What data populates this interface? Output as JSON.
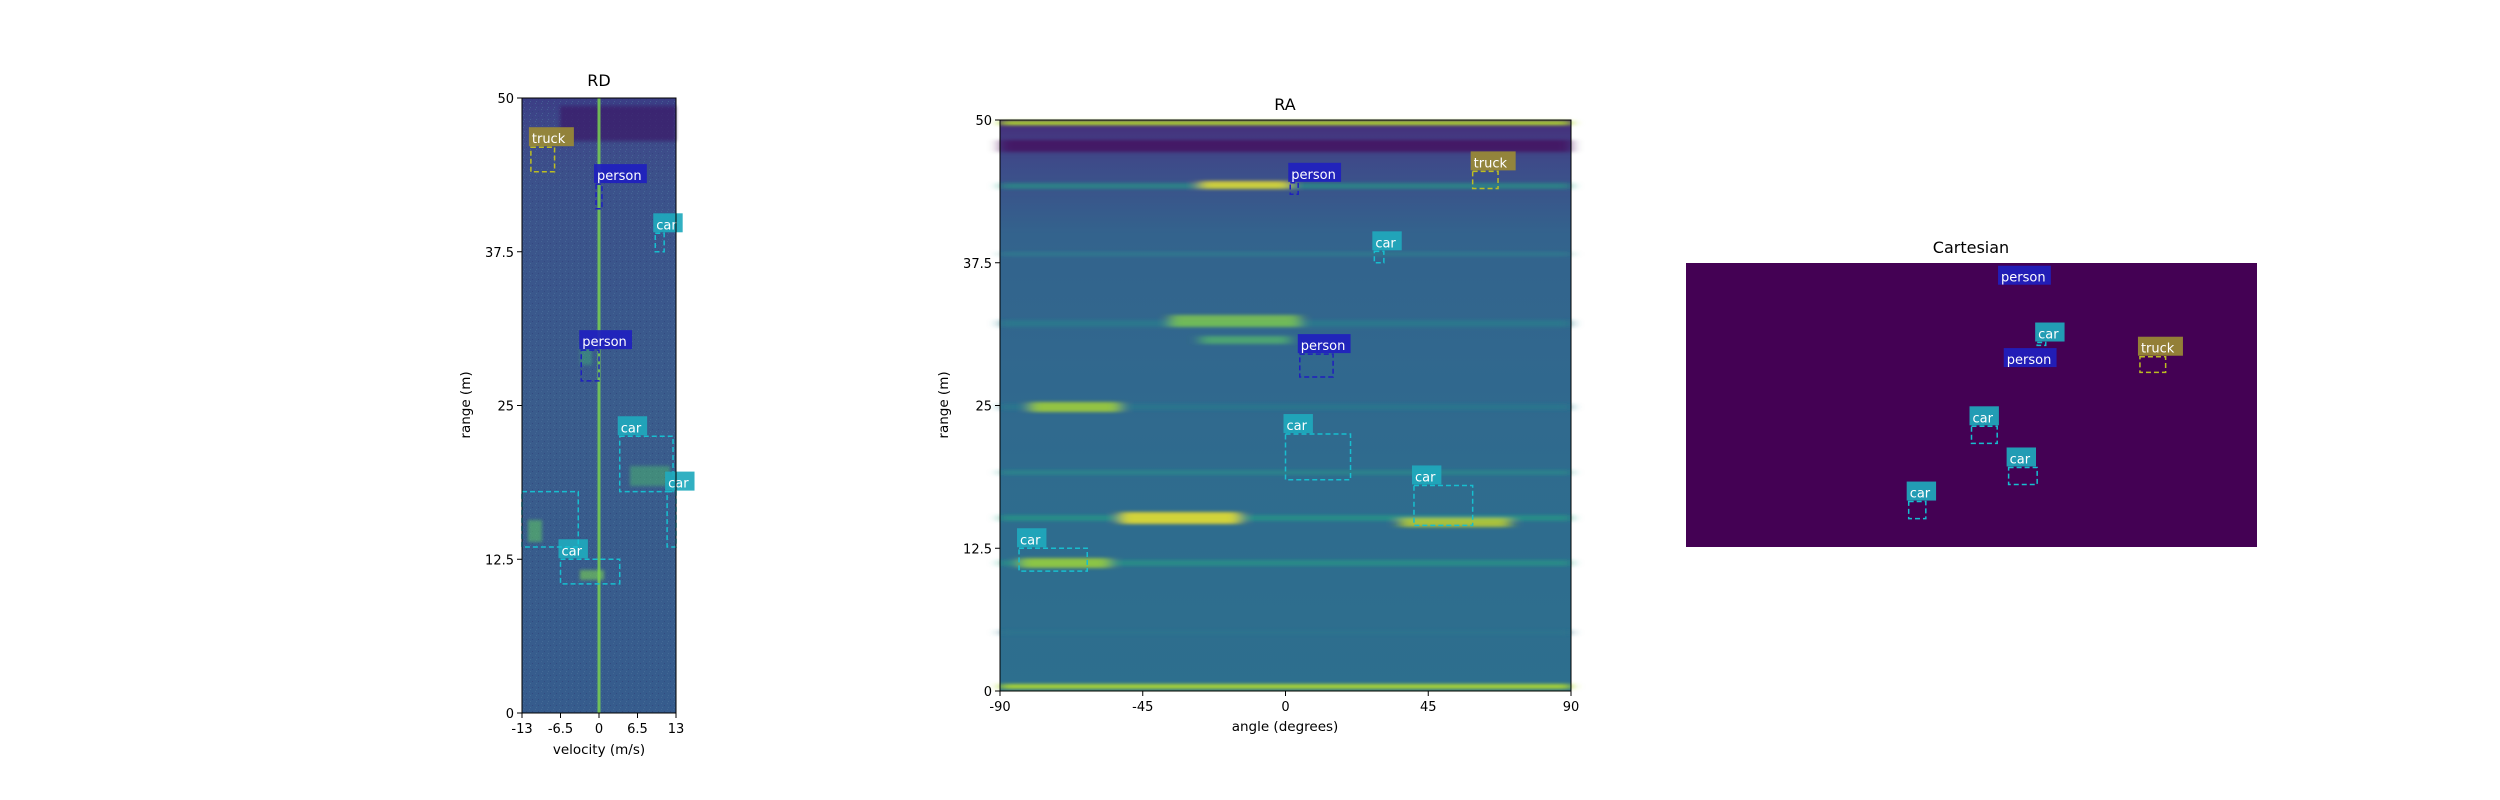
{
  "colors": {
    "car": "#17becf",
    "person": "#1f1fbf",
    "truck": "#bcbd22",
    "background_low": "#2d6e8e",
    "peak": "#a8dc3c",
    "cartesian_bg": "#440154"
  },
  "chart_data": [
    {
      "type": "heatmap",
      "title": "RD",
      "xlabel": "velocity (m/s)",
      "ylabel": "range (m)",
      "xlim": [
        -13,
        13
      ],
      "ylim": [
        0,
        50
      ],
      "xticks": [
        "-13",
        "-6.5",
        "0",
        "6.5",
        "13"
      ],
      "xtick_values": [
        -13,
        -6.5,
        0,
        6.5,
        13
      ],
      "yticks": [
        "0",
        "12.5",
        "25",
        "37.5",
        "50"
      ],
      "ytick_values": [
        0,
        12.5,
        25,
        37.5,
        50
      ],
      "detections": [
        {
          "label": "truck",
          "class": "truck",
          "x": [
            -11.5,
            -7.5
          ],
          "y": [
            44,
            46
          ]
        },
        {
          "label": "person",
          "class": "person",
          "x": [
            -0.5,
            0.5
          ],
          "y": [
            41,
            43
          ]
        },
        {
          "label": "car",
          "class": "car",
          "x": [
            9.5,
            11
          ],
          "y": [
            37.5,
            39
          ]
        },
        {
          "label": "person",
          "class": "person",
          "x": [
            -3,
            0
          ],
          "y": [
            27,
            29.5
          ]
        },
        {
          "label": "car",
          "class": "car",
          "x": [
            3.5,
            12.5
          ],
          "y": [
            18,
            22.5
          ]
        },
        {
          "label": "car",
          "class": "car",
          "x": [
            11.5,
            13
          ],
          "y": [
            13.5,
            18
          ]
        },
        {
          "label": "car",
          "class": "car",
          "x": [
            -6.5,
            3.5
          ],
          "y": [
            10.5,
            12.5
          ]
        },
        {
          "label": "",
          "class": "car",
          "x": [
            -13,
            -3.5
          ],
          "y": [
            13.5,
            18
          ]
        }
      ]
    },
    {
      "type": "heatmap",
      "title": "RA",
      "xlabel": "angle (degrees)",
      "ylabel": "range (m)",
      "xlim": [
        -90,
        90
      ],
      "ylim": [
        0,
        50
      ],
      "xticks": [
        "-90",
        "-45",
        "0",
        "45",
        "90"
      ],
      "xtick_values": [
        -90,
        -45,
        0,
        45,
        90
      ],
      "yticks": [
        "0",
        "12.5",
        "25",
        "37.5",
        "50"
      ],
      "ytick_values": [
        0,
        12.5,
        25,
        37.5,
        50
      ],
      "detections": [
        {
          "label": "truck",
          "class": "truck",
          "x": [
            59,
            67
          ],
          "y": [
            44,
            45.5
          ]
        },
        {
          "label": "person",
          "class": "person",
          "x": [
            1.5,
            4
          ],
          "y": [
            43.5,
            44.5
          ]
        },
        {
          "label": "car",
          "class": "car",
          "x": [
            28,
            31
          ],
          "y": [
            37.5,
            38.5
          ]
        },
        {
          "label": "person",
          "class": "person",
          "x": [
            4.5,
            15
          ],
          "y": [
            27.5,
            29.5
          ]
        },
        {
          "label": "car",
          "class": "car",
          "x": [
            0,
            20.5
          ],
          "y": [
            18.5,
            22.5
          ]
        },
        {
          "label": "car",
          "class": "car",
          "x": [
            40.5,
            59
          ],
          "y": [
            14.5,
            18
          ]
        },
        {
          "label": "car",
          "class": "car",
          "x": [
            -84,
            -62.5
          ],
          "y": [
            10.5,
            12.5
          ]
        }
      ]
    },
    {
      "type": "heatmap",
      "title": "Cartesian",
      "detections": [
        {
          "label": "person",
          "class": "person",
          "x": [
            0.55,
            0.55
          ],
          "y": [
            0.08,
            0.08
          ],
          "nobox": true
        },
        {
          "label": "car",
          "class": "car",
          "x": [
            0.615,
            0.63
          ],
          "y": [
            0.28,
            0.29
          ]
        },
        {
          "label": "truck",
          "class": "truck",
          "x": [
            0.795,
            0.84
          ],
          "y": [
            0.33,
            0.385
          ]
        },
        {
          "label": "person",
          "class": "person",
          "x": [
            0.56,
            0.56
          ],
          "y": [
            0.37,
            0.37
          ],
          "nobox": true
        },
        {
          "label": "car",
          "class": "car",
          "x": [
            0.5,
            0.545
          ],
          "y": [
            0.575,
            0.635
          ]
        },
        {
          "label": "car",
          "class": "car",
          "x": [
            0.565,
            0.615
          ],
          "y": [
            0.72,
            0.78
          ]
        },
        {
          "label": "car",
          "class": "car",
          "x": [
            0.39,
            0.42
          ],
          "y": [
            0.84,
            0.9
          ]
        }
      ]
    }
  ]
}
